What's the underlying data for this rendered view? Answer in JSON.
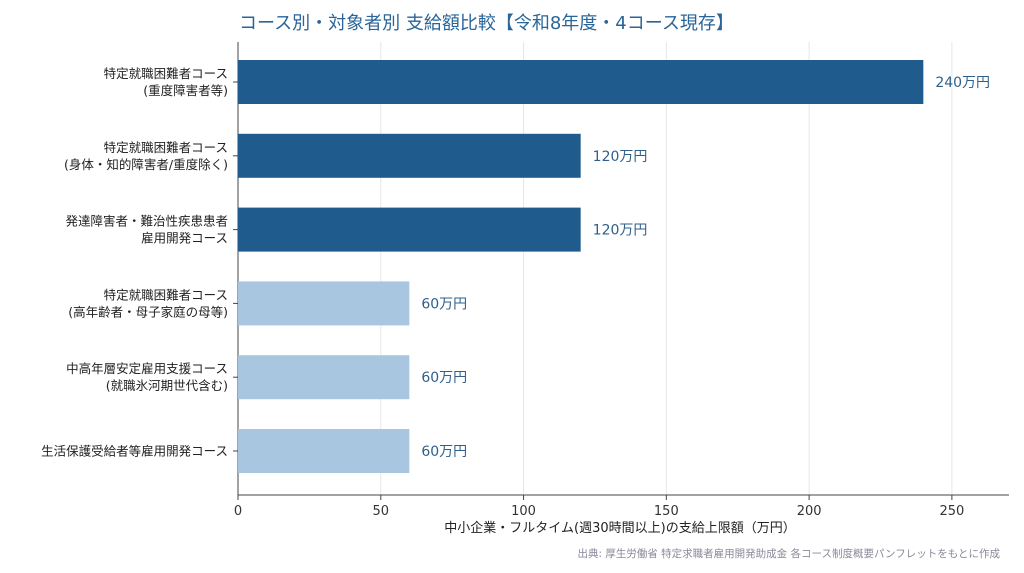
{
  "chart_data": {
    "type": "bar",
    "orientation": "horizontal",
    "title": "コース別・対象者別 支給額比較【令和8年度・4コース現存】",
    "xlabel": "中小企業・フルタイム(週30時間以上)の支給上限額（万円）",
    "ylabel": "",
    "xlim": [
      0,
      270
    ],
    "xticks": [
      0,
      50,
      100,
      150,
      200,
      250
    ],
    "grid": "vertical",
    "categories": [
      [
        "特定就職困難者コース",
        "(重度障害者等)"
      ],
      [
        "特定就職困難者コース",
        "(身体・知的障害者/重度除く)"
      ],
      [
        "発達障害者・難治性疾患患者",
        "雇用開発コース"
      ],
      [
        "特定就職困難者コース",
        "(高年齢者・母子家庭の母等)"
      ],
      [
        "中高年層安定雇用支援コース",
        "(就職氷河期世代含む)"
      ],
      [
        "生活保護受給者等雇用開発コース"
      ]
    ],
    "values": [
      240,
      120,
      120,
      60,
      60,
      60
    ],
    "data_labels": [
      "240万円",
      "120万円",
      "120万円",
      "60万円",
      "60万円",
      "60万円"
    ],
    "colors": [
      "#1f5b8c",
      "#1f5b8c",
      "#1f5b8c",
      "#a9c6e0",
      "#a9c6e0",
      "#a9c6e0"
    ],
    "source": "出典: 厚生労働省 特定求職者雇用開発助成金 各コース制度概要パンフレットをもとに作成"
  }
}
